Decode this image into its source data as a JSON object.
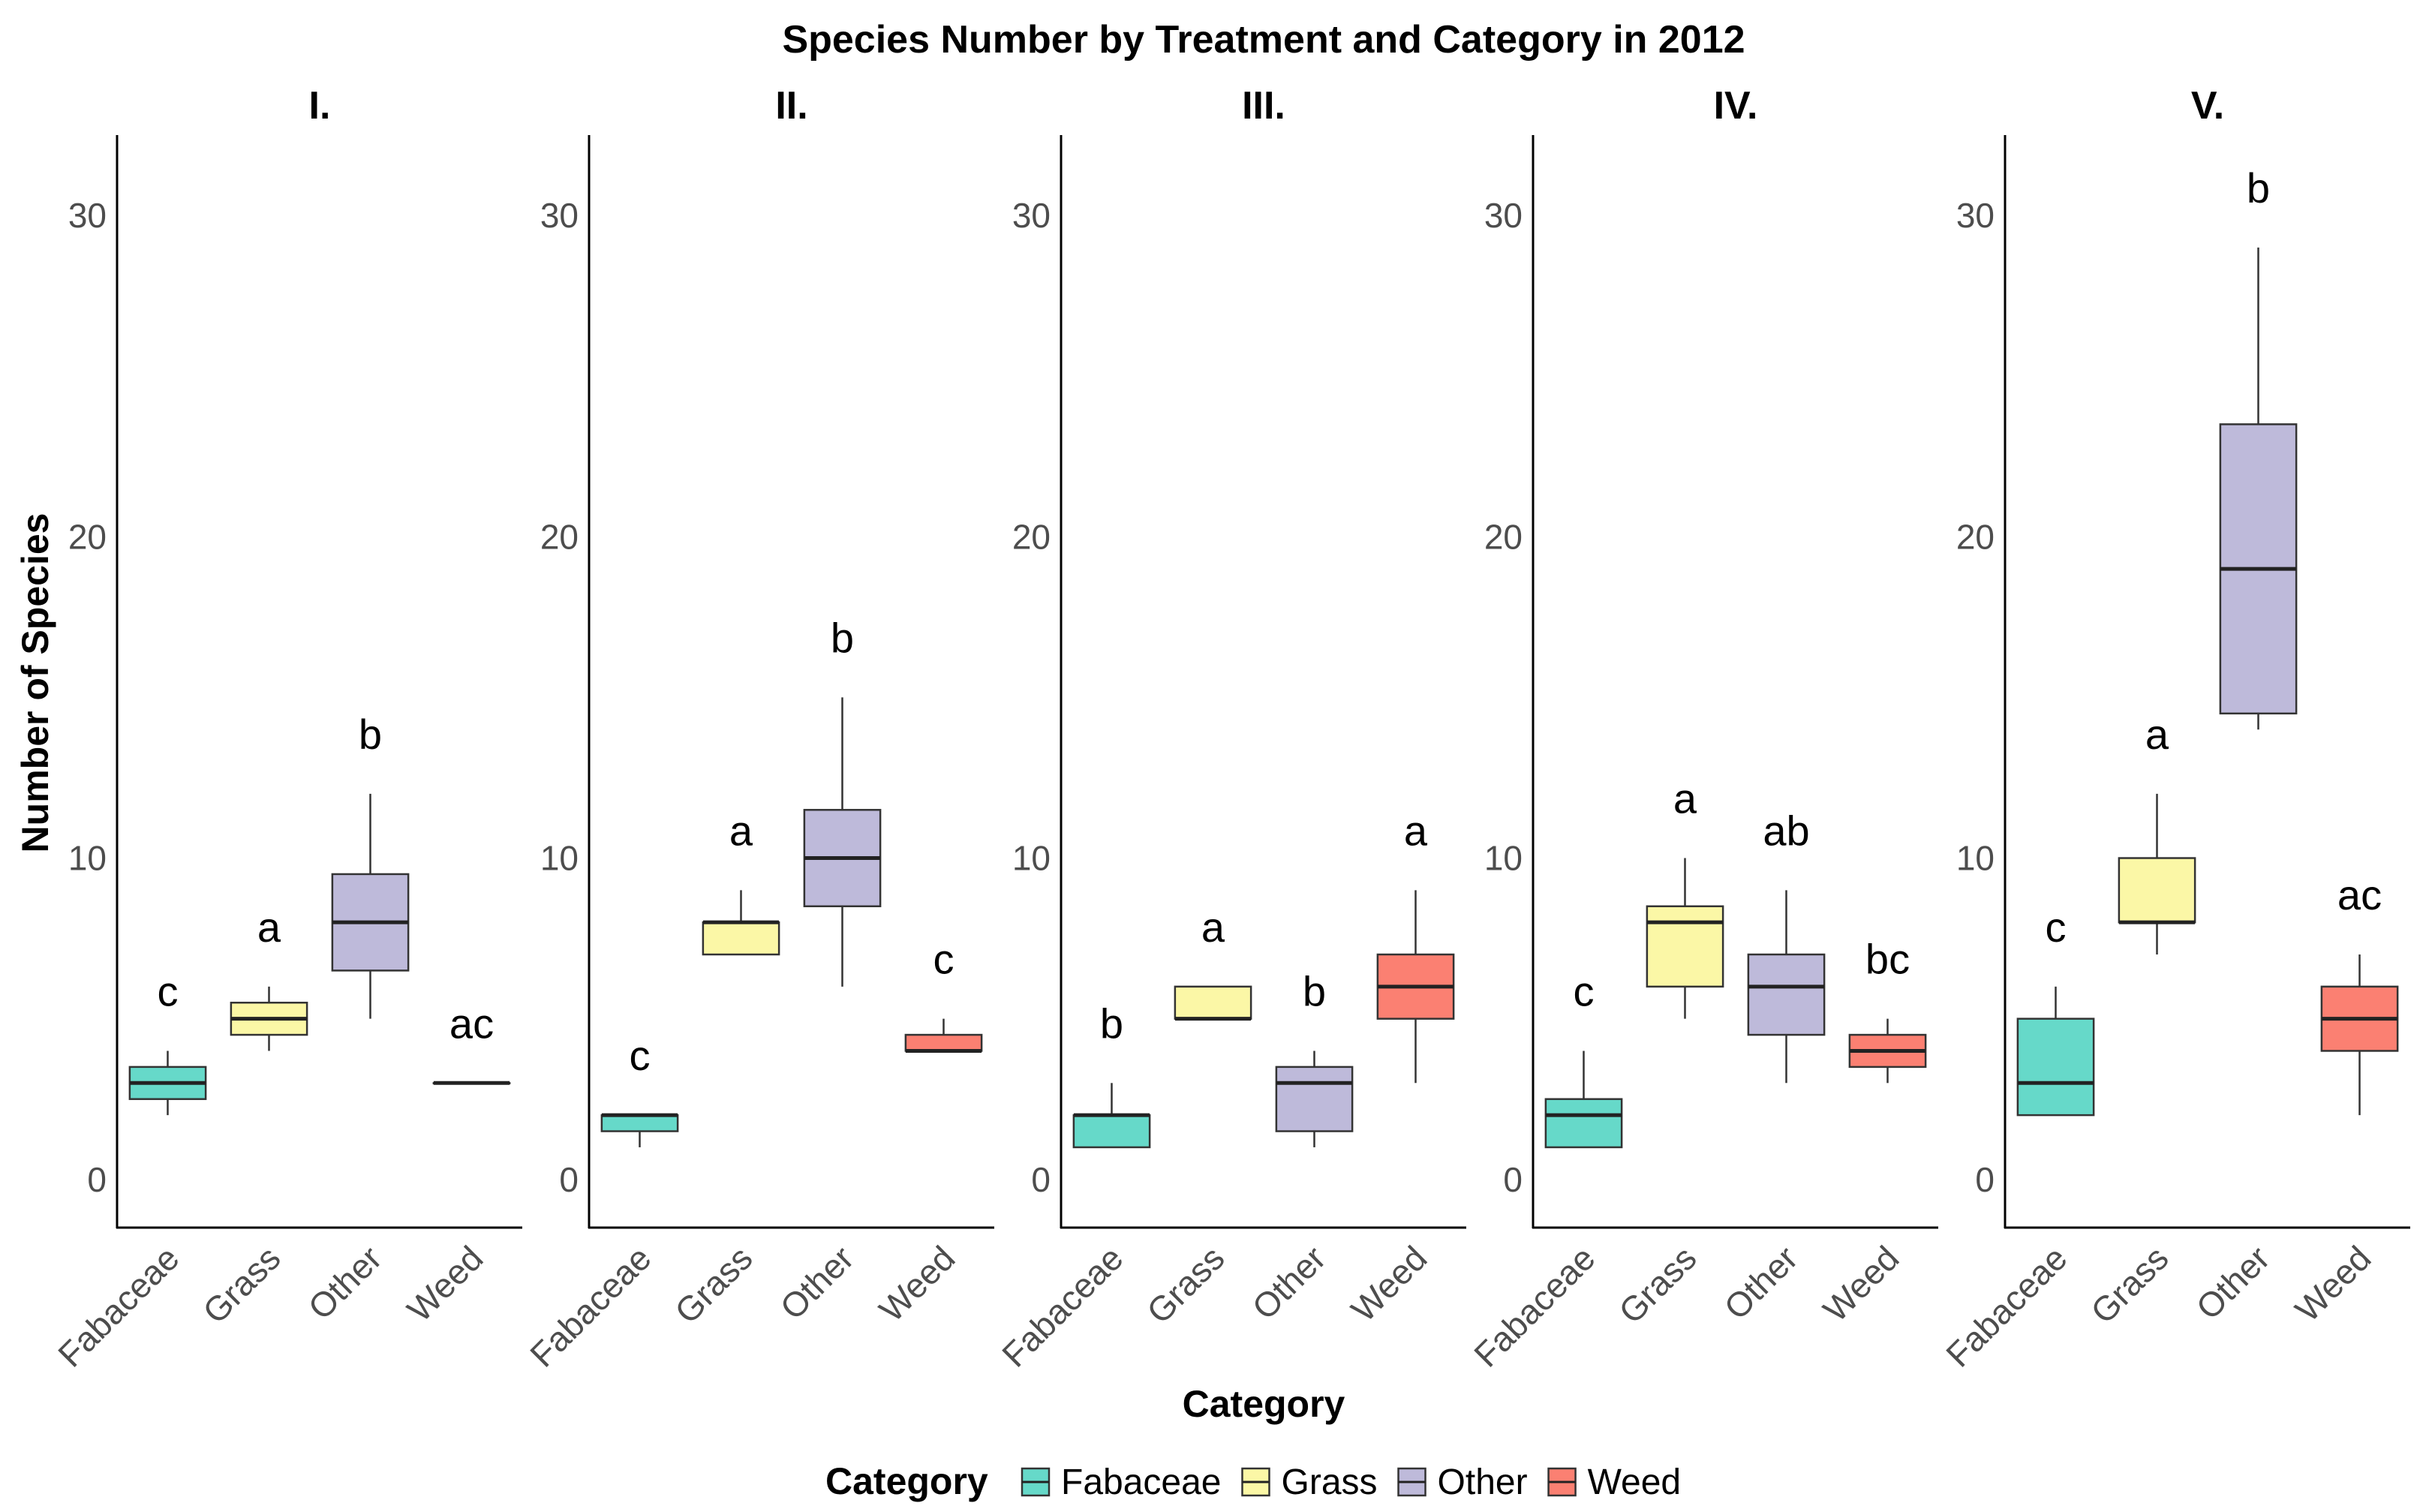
{
  "chart_data": {
    "type": "boxplot",
    "title": "Species Number by Treatment and Category in 2012",
    "xlabel": "Category",
    "ylabel": "Number of Species",
    "ylim": [
      -1.5,
      32.5
    ],
    "yticks": [
      0,
      10,
      20,
      30
    ],
    "categories": [
      "Fabaceae",
      "Grass",
      "Other",
      "Weed"
    ],
    "colors": {
      "Fabaceae": "#66d9c9",
      "Grass": "#fbf7a6",
      "Other": "#bebada",
      "Weed": "#fb8072"
    },
    "legend": {
      "title": "Category",
      "position": "bottom",
      "entries": [
        "Fabaceae",
        "Grass",
        "Other",
        "Weed"
      ]
    },
    "facets": [
      {
        "label": "I.",
        "boxes": [
          {
            "category": "Fabaceae",
            "min": 2,
            "q1": 2.5,
            "median": 3,
            "q3": 3.5,
            "max": 4,
            "letter": "c"
          },
          {
            "category": "Grass",
            "min": 4,
            "q1": 4.5,
            "median": 5,
            "q3": 5.5,
            "max": 6,
            "letter": "a"
          },
          {
            "category": "Other",
            "min": 5,
            "q1": 6.5,
            "median": 8,
            "q3": 9.5,
            "max": 12,
            "letter": "b"
          },
          {
            "category": "Weed",
            "min": 3,
            "q1": 3,
            "median": 3,
            "q3": 3,
            "max": 3,
            "letter": "ac"
          }
        ]
      },
      {
        "label": "II.",
        "boxes": [
          {
            "category": "Fabaceae",
            "min": 1,
            "q1": 1.5,
            "median": 2,
            "q3": 2,
            "max": 2,
            "letter": "c"
          },
          {
            "category": "Grass",
            "min": 7,
            "q1": 7,
            "median": 8,
            "q3": 8,
            "max": 9,
            "letter": "a"
          },
          {
            "category": "Other",
            "min": 6,
            "q1": 8.5,
            "median": 10,
            "q3": 11.5,
            "max": 15,
            "letter": "b"
          },
          {
            "category": "Weed",
            "min": 4,
            "q1": 4,
            "median": 4,
            "q3": 4.5,
            "max": 5,
            "letter": "c"
          }
        ]
      },
      {
        "label": "III.",
        "boxes": [
          {
            "category": "Fabaceae",
            "min": 1,
            "q1": 1,
            "median": 2,
            "q3": 2,
            "max": 3,
            "letter": "b"
          },
          {
            "category": "Grass",
            "min": 5,
            "q1": 5,
            "median": 5,
            "q3": 6,
            "max": 6,
            "letter": "a"
          },
          {
            "category": "Other",
            "min": 1,
            "q1": 1.5,
            "median": 3,
            "q3": 3.5,
            "max": 4,
            "letter": "b"
          },
          {
            "category": "Weed",
            "min": 3,
            "q1": 5,
            "median": 6,
            "q3": 7,
            "max": 9,
            "letter": "a"
          }
        ]
      },
      {
        "label": "IV.",
        "boxes": [
          {
            "category": "Fabaceae",
            "min": 1,
            "q1": 1,
            "median": 2,
            "q3": 2.5,
            "max": 4,
            "letter": "c"
          },
          {
            "category": "Grass",
            "min": 5,
            "q1": 6,
            "median": 8,
            "q3": 8.5,
            "max": 10,
            "letter": "a"
          },
          {
            "category": "Other",
            "min": 3,
            "q1": 4.5,
            "median": 6,
            "q3": 7,
            "max": 9,
            "letter": "ab"
          },
          {
            "category": "Weed",
            "min": 3,
            "q1": 3.5,
            "median": 4,
            "q3": 4.5,
            "max": 5,
            "letter": "bc"
          }
        ]
      },
      {
        "label": "V.",
        "boxes": [
          {
            "category": "Fabaceae",
            "min": 2,
            "q1": 2,
            "median": 3,
            "q3": 5,
            "max": 6,
            "letter": "c"
          },
          {
            "category": "Grass",
            "min": 7,
            "q1": 8,
            "median": 8,
            "q3": 10,
            "max": 12,
            "letter": "a"
          },
          {
            "category": "Other",
            "min": 14,
            "q1": 14.5,
            "median": 19,
            "q3": 23.5,
            "max": 29,
            "letter": "b"
          },
          {
            "category": "Weed",
            "min": 2,
            "q1": 4,
            "median": 5,
            "q3": 6,
            "max": 7,
            "letter": "ac"
          }
        ]
      }
    ]
  }
}
